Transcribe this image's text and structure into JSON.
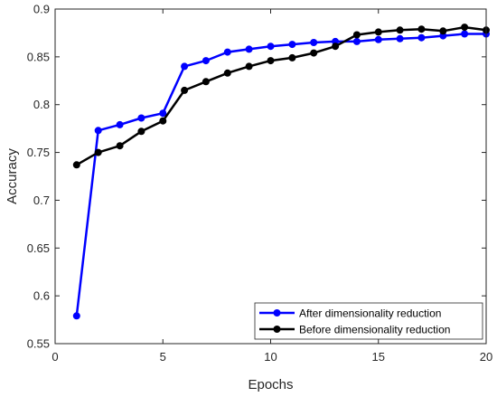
{
  "chart_data": {
    "type": "line",
    "xlabel": "Epochs",
    "ylabel": "Accuracy",
    "xlim": [
      0,
      20
    ],
    "ylim": [
      0.55,
      0.9
    ],
    "xticks": [
      "0",
      "5",
      "10",
      "15",
      "20"
    ],
    "yticks": [
      "0.55",
      "0.6",
      "0.65",
      "0.7",
      "0.75",
      "0.8",
      "0.85",
      "0.9"
    ],
    "grid": false,
    "legend_position": "bottom-right",
    "x": [
      1,
      2,
      3,
      4,
      5,
      6,
      7,
      8,
      9,
      10,
      11,
      12,
      13,
      14,
      15,
      16,
      17,
      18,
      19,
      20
    ],
    "series": [
      {
        "name": "After dimensionality reduction",
        "color": "#0000ff",
        "values": [
          0.579,
          0.773,
          0.779,
          0.786,
          0.791,
          0.84,
          0.846,
          0.855,
          0.858,
          0.861,
          0.863,
          0.865,
          0.866,
          0.866,
          0.868,
          0.869,
          0.87,
          0.872,
          0.874,
          0.874
        ]
      },
      {
        "name": "Before dimensionality reduction",
        "color": "#000000",
        "values": [
          0.737,
          0.75,
          0.757,
          0.772,
          0.783,
          0.815,
          0.824,
          0.833,
          0.84,
          0.846,
          0.849,
          0.854,
          0.861,
          0.873,
          0.876,
          0.878,
          0.879,
          0.877,
          0.881,
          0.878
        ]
      }
    ]
  }
}
